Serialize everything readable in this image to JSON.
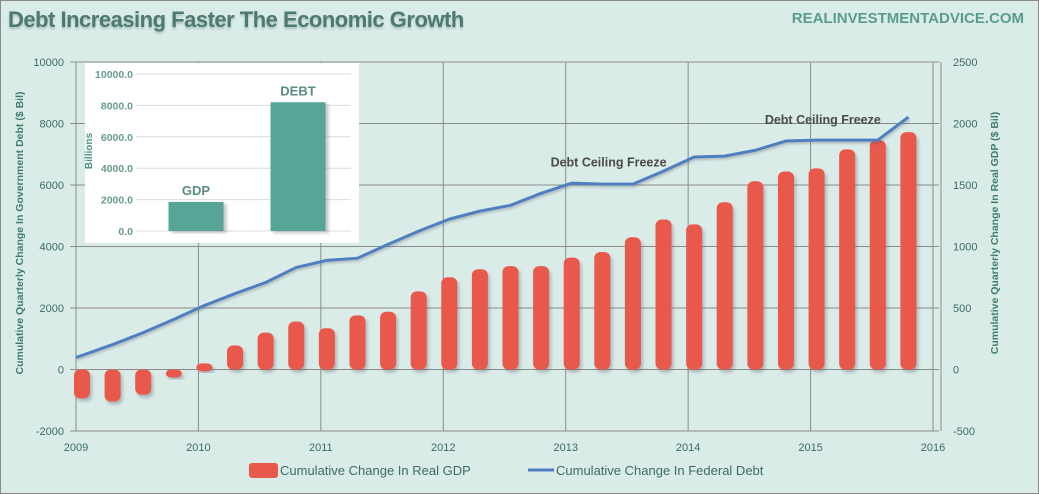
{
  "header": {
    "title": "Debt Increasing Faster The Economic Growth",
    "brand": "REALINVESTMENTADVICE.COM"
  },
  "colors": {
    "background": "#daece8",
    "bar": "#e8594b",
    "line": "#4f7fc0",
    "inset_bar": "#56a596",
    "grid": "#8c8c8c"
  },
  "chart_data": [
    {
      "type": "bar+line",
      "title": "Debt Increasing Faster The Economic Growth",
      "xlabel": "",
      "x_ticks": [
        "2009",
        "2010",
        "2011",
        "2012",
        "2013",
        "2014",
        "2015",
        "2016"
      ],
      "xlim": [
        2009,
        2016
      ],
      "y_left": {
        "label": "Cumulative Quarterly Change In Government Debt ($ Bil)",
        "ylim": [
          -2000,
          10000
        ],
        "ticks": [
          "-2000",
          "0",
          "2000",
          "4000",
          "6000",
          "8000",
          "10000"
        ]
      },
      "y_right": {
        "label": "Cumulative Quarterly Change In Real GDP ($ Bil)",
        "ylim": [
          -500,
          2500
        ],
        "ticks": [
          "-500",
          "0",
          "500",
          "1000",
          "1500",
          "2000",
          "2500"
        ]
      },
      "grid": true,
      "legend_position": "bottom",
      "x": [
        2009.0,
        2009.25,
        2009.5,
        2009.75,
        2010.0,
        2010.25,
        2010.5,
        2010.75,
        2011.0,
        2011.25,
        2011.5,
        2011.75,
        2012.0,
        2012.25,
        2012.5,
        2012.75,
        2013.0,
        2013.25,
        2013.5,
        2013.75,
        2014.0,
        2014.25,
        2014.5,
        2014.75,
        2015.0,
        2015.25,
        2015.5,
        2015.75
      ],
      "series": [
        {
          "name": "Cumulative Change In Real GDP",
          "type": "bar",
          "axis": "right",
          "values": [
            -235,
            -260,
            -205,
            -65,
            50,
            195,
            300,
            390,
            335,
            440,
            470,
            635,
            750,
            815,
            840,
            840,
            910,
            955,
            1075,
            1220,
            1180,
            1360,
            1530,
            1610,
            1635,
            1790,
            1865,
            1930
          ]
        },
        {
          "name": "Cumulative Change In Federal Debt",
          "type": "line",
          "axis": "left",
          "values": [
            390,
            810,
            1200,
            1630,
            2080,
            2470,
            2830,
            3320,
            3550,
            3620,
            4070,
            4500,
            4890,
            5150,
            5340,
            5730,
            6060,
            6030,
            6030,
            6450,
            6910,
            6940,
            7130,
            7430,
            7460,
            7460,
            7460,
            8210
          ]
        }
      ],
      "annotations": [
        {
          "text": "Debt Ceiling Freeze",
          "x": 2013.35,
          "y": 6600
        },
        {
          "text": "Debt Ceiling Freeze",
          "x": 2015.1,
          "y": 7980
        }
      ]
    },
    {
      "type": "bar",
      "title": "",
      "ylabel": "Billions",
      "categories": [
        "GDP",
        "DEBT"
      ],
      "values": [
        1850,
        8200
      ],
      "ylim": [
        0,
        10000
      ],
      "ticks": [
        "0.0",
        "2000.0",
        "4000.0",
        "6000.0",
        "8000.0",
        "10000.0"
      ],
      "grid": true
    }
  ]
}
